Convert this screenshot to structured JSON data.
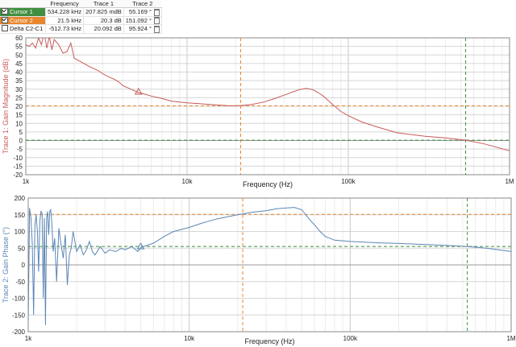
{
  "cursor_table": {
    "headers": [
      "",
      "Frequency",
      "Trace 1",
      "Trace 2"
    ],
    "rows": [
      {
        "name": "Cursor 1",
        "frequency": "534.228 kHz",
        "trace1": "207.825 mdB",
        "trace2": "55.169 °",
        "checked": true,
        "color": "#3f8f3f"
      },
      {
        "name": "Cursor 2",
        "frequency": "21.5 kHz",
        "trace1": "20.3 dB",
        "trace2": "151.092 °",
        "checked": true,
        "color": "#e8862e"
      },
      {
        "name": "Delta C2-C1",
        "frequency": "-512.73 kHz",
        "trace1": "20.092 dB",
        "trace2": "95.924 °",
        "checked": false,
        "color": ""
      }
    ]
  },
  "colors": {
    "trace1": "#c85a5a",
    "trace2": "#5b86b5",
    "cursor1": "#3f8f3f",
    "cursor2": "#e8862e"
  },
  "chart_data": [
    {
      "type": "line",
      "xscale": "log",
      "xlim": [
        1000,
        1000000
      ],
      "ylim": [
        -20,
        60
      ],
      "xlabel": "Frequency (Hz)",
      "ylabel": "Trace 1: Gain Magnitude (dB)",
      "xtick_labels": [
        "1k",
        "10k",
        "100k",
        "1M"
      ],
      "ytick_labels": [
        "60",
        "55",
        "50",
        "45",
        "40",
        "35",
        "30",
        "25",
        "20",
        "15",
        "10",
        "5",
        "0",
        "-5",
        "-10",
        "-15",
        "-20"
      ],
      "grid": true,
      "series": [
        {
          "values_x": [
            1000,
            1050,
            1100,
            1150,
            1200,
            1250,
            1300,
            1350,
            1400,
            1450,
            1500,
            1600,
            1700,
            1800,
            1900,
            2000,
            2200,
            2500,
            2800,
            3000,
            3300,
            3500,
            3800,
            4000,
            4500,
            5000,
            5500,
            6000,
            7000,
            8000,
            9000,
            10000,
            12000,
            15000,
            18000,
            20000,
            22000,
            25000,
            30000,
            35000,
            40000,
            45000,
            50000,
            55000,
            60000,
            65000,
            70000,
            80000,
            90000,
            100000,
            120000,
            150000,
            200000,
            300000,
            400000,
            534228,
            700000,
            1000000
          ],
          "values_y": [
            56,
            55,
            57,
            54,
            60,
            56,
            63,
            54,
            61,
            53,
            59,
            56,
            51,
            52,
            57,
            48,
            46,
            43,
            41,
            39,
            37,
            36,
            34,
            32,
            30,
            28,
            27,
            26,
            24.5,
            23,
            22.5,
            22,
            21.5,
            20.8,
            20.4,
            20.3,
            20.5,
            21,
            22.5,
            24.5,
            26.5,
            28.3,
            29.8,
            30.5,
            29.8,
            28,
            26,
            21,
            17,
            14.5,
            11,
            8,
            4.5,
            2.5,
            1.5,
            0.2,
            -2,
            -6
          ]
        }
      ],
      "markers": [
        {
          "x": 5000,
          "y": 28.5,
          "shape": "triangle"
        }
      ],
      "cursor_lines": [
        {
          "name": "Cursor 1",
          "x": 534228,
          "y": 0.2
        },
        {
          "name": "Cursor 2",
          "x": 21500,
          "y": 20.3
        }
      ]
    },
    {
      "type": "line",
      "xscale": "log",
      "xlim": [
        1000,
        1000000
      ],
      "ylim": [
        -200,
        200
      ],
      "xlabel": "Frequency (Hz)",
      "ylabel": "Trace 2: Gain Phase (°)",
      "xtick_labels": [
        "1k",
        "10k",
        "100k",
        "1M"
      ],
      "ytick_labels": [
        "200",
        "150",
        "100",
        "50",
        "0",
        "-50",
        "-100",
        "-150",
        "-200"
      ],
      "grid": true,
      "series": [
        {
          "values_x": [
            1000,
            1020,
            1040,
            1060,
            1080,
            1100,
            1120,
            1140,
            1160,
            1180,
            1200,
            1220,
            1240,
            1260,
            1280,
            1300,
            1320,
            1340,
            1360,
            1380,
            1400,
            1430,
            1460,
            1500,
            1550,
            1600,
            1650,
            1700,
            1750,
            1800,
            1850,
            1900,
            1950,
            2000,
            2100,
            2200,
            2300,
            2400,
            2500,
            2600,
            2800,
            3000,
            3200,
            3500,
            3800,
            4000,
            4400,
            4800,
            5000,
            6000,
            7000,
            8000,
            10000,
            12000,
            15000,
            20000,
            25000,
            30000,
            35000,
            40000,
            45000,
            50000,
            55000,
            60000,
            65000,
            70000,
            80000,
            100000,
            150000,
            200000,
            300000,
            400000,
            534228,
            700000,
            1000000
          ],
          "values_y": [
            -170,
            170,
            140,
            60,
            -150,
            120,
            150,
            100,
            -20,
            130,
            160,
            155,
            -100,
            140,
            -180,
            140,
            160,
            90,
            160,
            165,
            130,
            40,
            80,
            -50,
            110,
            60,
            20,
            90,
            -60,
            30,
            50,
            100,
            70,
            40,
            60,
            30,
            45,
            70,
            40,
            30,
            55,
            35,
            45,
            40,
            50,
            45,
            55,
            40,
            52,
            65,
            85,
            100,
            112,
            125,
            138,
            150,
            158,
            162,
            168,
            170,
            172,
            165,
            140,
            120,
            100,
            85,
            74,
            70,
            66,
            64,
            61,
            58,
            55.2,
            50,
            40
          ]
        }
      ],
      "markers": [
        {
          "x": 5000,
          "y": 55,
          "shape": "triangle"
        }
      ],
      "cursor_lines": [
        {
          "name": "Cursor 1",
          "x": 534228,
          "y": 55.169
        },
        {
          "name": "Cursor 2",
          "x": 21500,
          "y": 151.092
        }
      ]
    }
  ]
}
